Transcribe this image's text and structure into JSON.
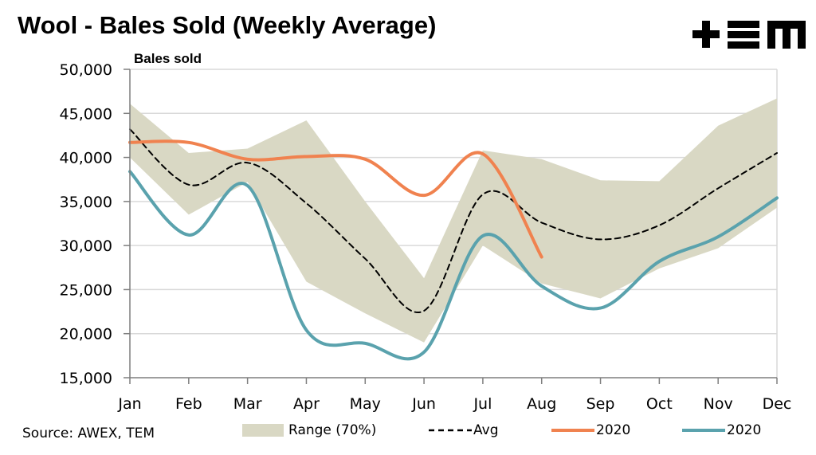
{
  "header": {
    "title": "Wool - Bales Sold (Weekly Average)",
    "logo_text": "+≡m"
  },
  "footer": {
    "source": "Source: AWEX, TEM"
  },
  "colors": {
    "range": "#d9d8c4",
    "avg": "#000000",
    "series_2020_orange": "#f0824f",
    "series_2020_teal": "#5aa2ad",
    "grid": "#d9d9d9",
    "axis": "#7f7f7f"
  },
  "chart_data": {
    "type": "line",
    "title": "Wool - Bales Sold (Weekly Average)",
    "ylabel": "Bales sold",
    "xlabel": "",
    "categories": [
      "Jan",
      "Feb",
      "Mar",
      "Apr",
      "May",
      "Jun",
      "Jul",
      "Aug",
      "Sep",
      "Oct",
      "Nov",
      "Dec"
    ],
    "ylim": [
      15000,
      50000
    ],
    "yticks": [
      15000,
      20000,
      25000,
      30000,
      35000,
      40000,
      45000,
      50000
    ],
    "ytick_labels": [
      "15,000",
      "20,000",
      "25,000",
      "30,000",
      "35,000",
      "40,000",
      "45,000",
      "50,000"
    ],
    "grid": "horizontal",
    "legend_position": "bottom",
    "range": {
      "name": "Range (70%)",
      "upper": [
        46100,
        40500,
        41000,
        44200,
        35000,
        26300,
        40800,
        39800,
        37400,
        37300,
        43600,
        46700
      ],
      "lower": [
        40000,
        33500,
        37200,
        25900,
        22300,
        19000,
        30000,
        25700,
        24000,
        27400,
        29700,
        34300
      ]
    },
    "series": [
      {
        "name": "Avg",
        "style": "dashed",
        "values": [
          43200,
          36900,
          39400,
          34800,
          28500,
          22600,
          35800,
          32600,
          30700,
          32300,
          36500,
          40500
        ]
      },
      {
        "name": "2020",
        "style": "solid",
        "color_key": "series_2020_orange",
        "values": [
          41700,
          41700,
          39800,
          40100,
          39800,
          35700,
          40400,
          28700,
          null,
          null,
          null,
          null
        ]
      },
      {
        "name": "2020",
        "style": "solid",
        "color_key": "series_2020_teal",
        "values": [
          38400,
          31200,
          36800,
          20400,
          18900,
          17900,
          31100,
          25400,
          22900,
          28200,
          31000,
          35400
        ]
      }
    ]
  }
}
